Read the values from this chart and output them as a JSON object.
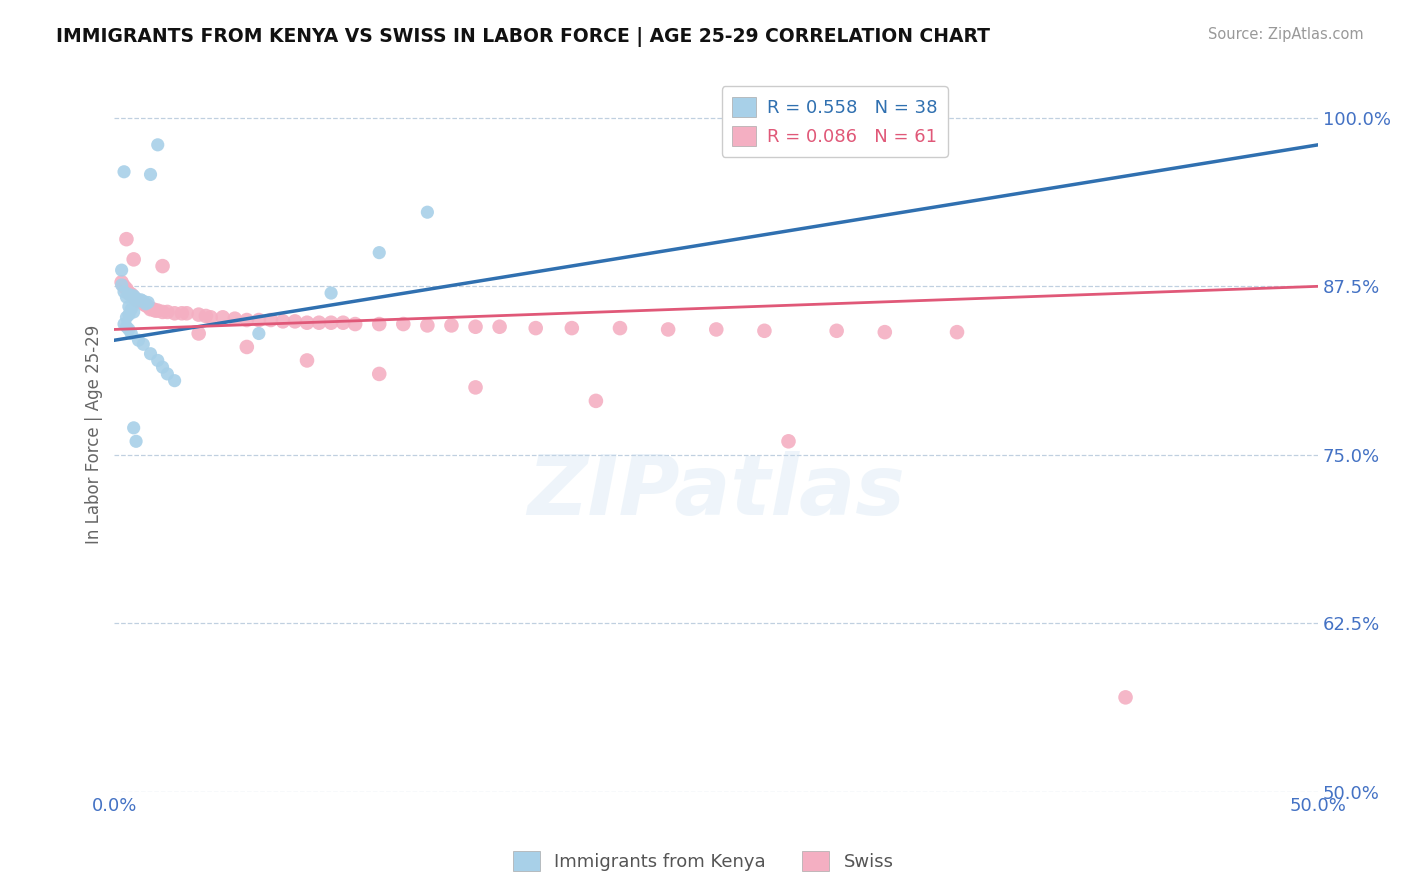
{
  "title": "IMMIGRANTS FROM KENYA VS SWISS IN LABOR FORCE | AGE 25-29 CORRELATION CHART",
  "source": "Source: ZipAtlas.com",
  "ylabel": "In Labor Force | Age 25-29",
  "xlim": [
    0.0,
    0.5
  ],
  "ylim": [
    0.5,
    1.03
  ],
  "xticks": [
    0.0,
    0.125,
    0.25,
    0.375,
    0.5
  ],
  "xticklabels": [
    "0.0%",
    "",
    "",
    "",
    "50.0%"
  ],
  "yticks_right": [
    1.0,
    0.875,
    0.75,
    0.625,
    0.5
  ],
  "yticklabels_right": [
    "100.0%",
    "87.5%",
    "75.0%",
    "62.5%",
    "50.0%"
  ],
  "blue_R": 0.558,
  "blue_N": 38,
  "pink_R": 0.086,
  "pink_N": 61,
  "blue_color": "#a8d0e8",
  "pink_color": "#f4afc2",
  "blue_line_color": "#3070b0",
  "pink_line_color": "#e05878",
  "legend_label_kenya": "Immigrants from Kenya",
  "legend_label_swiss": "Swiss",
  "watermark": "ZIPatlas",
  "blue_scatter_x": [
    0.018,
    0.004,
    0.003,
    0.003,
    0.004,
    0.006,
    0.008,
    0.007,
    0.005,
    0.009,
    0.011,
    0.01,
    0.012,
    0.014,
    0.013,
    0.006,
    0.007,
    0.008,
    0.006,
    0.005,
    0.004,
    0.005,
    0.006,
    0.007,
    0.01,
    0.012,
    0.015,
    0.018,
    0.02,
    0.022,
    0.025,
    0.008,
    0.009,
    0.06,
    0.09,
    0.11,
    0.13,
    0.015
  ],
  "blue_scatter_y": [
    0.98,
    0.96,
    0.887,
    0.876,
    0.871,
    0.869,
    0.868,
    0.868,
    0.867,
    0.866,
    0.865,
    0.864,
    0.864,
    0.863,
    0.862,
    0.86,
    0.858,
    0.856,
    0.854,
    0.852,
    0.847,
    0.845,
    0.843,
    0.84,
    0.835,
    0.832,
    0.825,
    0.82,
    0.815,
    0.81,
    0.805,
    0.77,
    0.76,
    0.84,
    0.87,
    0.9,
    0.93,
    0.958
  ],
  "pink_scatter_x": [
    0.003,
    0.004,
    0.005,
    0.006,
    0.007,
    0.008,
    0.009,
    0.01,
    0.012,
    0.013,
    0.014,
    0.015,
    0.016,
    0.017,
    0.018,
    0.02,
    0.022,
    0.025,
    0.028,
    0.03,
    0.035,
    0.038,
    0.04,
    0.045,
    0.05,
    0.055,
    0.06,
    0.065,
    0.07,
    0.075,
    0.08,
    0.085,
    0.09,
    0.095,
    0.1,
    0.11,
    0.12,
    0.13,
    0.14,
    0.15,
    0.16,
    0.175,
    0.19,
    0.21,
    0.23,
    0.25,
    0.27,
    0.3,
    0.32,
    0.35,
    0.005,
    0.008,
    0.02,
    0.035,
    0.055,
    0.08,
    0.11,
    0.15,
    0.2,
    0.28,
    0.42
  ],
  "pink_scatter_y": [
    0.878,
    0.875,
    0.873,
    0.87,
    0.869,
    0.867,
    0.865,
    0.864,
    0.862,
    0.861,
    0.86,
    0.858,
    0.858,
    0.857,
    0.857,
    0.856,
    0.856,
    0.855,
    0.855,
    0.855,
    0.854,
    0.853,
    0.852,
    0.852,
    0.851,
    0.85,
    0.85,
    0.85,
    0.849,
    0.849,
    0.848,
    0.848,
    0.848,
    0.848,
    0.847,
    0.847,
    0.847,
    0.846,
    0.846,
    0.845,
    0.845,
    0.844,
    0.844,
    0.844,
    0.843,
    0.843,
    0.842,
    0.842,
    0.841,
    0.841,
    0.91,
    0.895,
    0.89,
    0.84,
    0.83,
    0.82,
    0.81,
    0.8,
    0.79,
    0.76,
    0.57
  ],
  "blue_trendline": [
    0.0,
    0.5,
    0.835,
    0.98
  ],
  "pink_trendline": [
    0.0,
    0.5,
    0.843,
    0.875
  ]
}
